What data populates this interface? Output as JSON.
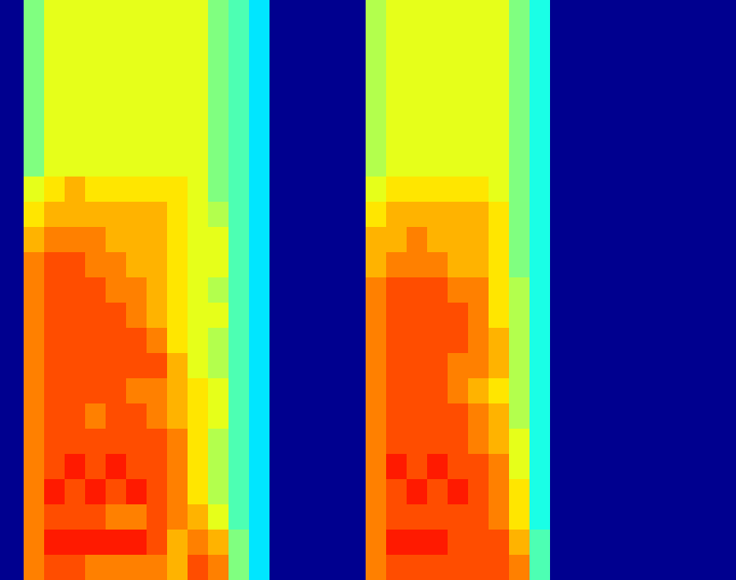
{
  "chart_data": [
    {
      "type": "heatmap",
      "tick_labels": false,
      "zlim": [
        0,
        10
      ],
      "cells": [
        [
          5,
          6,
          6,
          6,
          6,
          6,
          6,
          6,
          6,
          5,
          4.5,
          3.5
        ],
        [
          5,
          6,
          6,
          6,
          6,
          6,
          6,
          6,
          6,
          5,
          4.5,
          3.5
        ],
        [
          5,
          6,
          6,
          6,
          6,
          6,
          6,
          6,
          6,
          5,
          4.5,
          3.5
        ],
        [
          5,
          6,
          6,
          6,
          6,
          6,
          6,
          6,
          6,
          5,
          4.5,
          3.5
        ],
        [
          5,
          6,
          6,
          6,
          6,
          6,
          6,
          6,
          6,
          5,
          4.5,
          3.5
        ],
        [
          5,
          6,
          6,
          6,
          6,
          6,
          6,
          6,
          6,
          5,
          4.5,
          3.5
        ],
        [
          5,
          6,
          6,
          6,
          6,
          6,
          6,
          6,
          6,
          5,
          4.5,
          3.5
        ],
        [
          6,
          6.5,
          7,
          6.5,
          6.5,
          6.5,
          6.5,
          6.5,
          6,
          5,
          4.5,
          3.5
        ],
        [
          6.5,
          7,
          7,
          7,
          7,
          7,
          7,
          6.5,
          6,
          5.5,
          4.5,
          3.5
        ],
        [
          7,
          7.5,
          7.5,
          7.5,
          7,
          7,
          7,
          6.5,
          6,
          6,
          4.5,
          3.5
        ],
        [
          7.5,
          8,
          8,
          7.5,
          7.5,
          7,
          7,
          6.5,
          6,
          6,
          4.5,
          3.5
        ],
        [
          7.5,
          8,
          8,
          8,
          7.5,
          7.5,
          7,
          6.5,
          6,
          5.5,
          4.5,
          3.5
        ],
        [
          7.5,
          8,
          8,
          8,
          8,
          7.5,
          7,
          6.5,
          6,
          6,
          4.5,
          3.5
        ],
        [
          7.5,
          8,
          8,
          8,
          8,
          8,
          7.5,
          6.5,
          6,
          5.5,
          4.5,
          3.5
        ],
        [
          7.5,
          8,
          8,
          8,
          8,
          8,
          8,
          7,
          6,
          5.5,
          4.5,
          3.5
        ],
        [
          7.5,
          8,
          8,
          8,
          8,
          7.5,
          7.5,
          7,
          6.5,
          6,
          4.5,
          3.5
        ],
        [
          7.5,
          8,
          8,
          7.5,
          8,
          8,
          7.5,
          7,
          6.5,
          6,
          4.5,
          3.5
        ],
        [
          7.5,
          8,
          8,
          8,
          8,
          8,
          8,
          7.5,
          6.5,
          5.5,
          4.5,
          3.5
        ],
        [
          7.5,
          8,
          8.5,
          8,
          8.5,
          8,
          8,
          7.5,
          6.5,
          5.5,
          4.5,
          3.5
        ],
        [
          7.5,
          8.5,
          8,
          8.5,
          8,
          8.5,
          8,
          7.5,
          6.5,
          5.5,
          4.5,
          3.5
        ],
        [
          7.5,
          8,
          8,
          8,
          7.5,
          7.5,
          8,
          7.5,
          7,
          6,
          4.5,
          3.5
        ],
        [
          7.5,
          8.5,
          8.5,
          8.5,
          8.5,
          8.5,
          8,
          7,
          7.5,
          7,
          5,
          3.5
        ],
        [
          7.5,
          8,
          8,
          7.5,
          7.5,
          7.5,
          7.5,
          7,
          8,
          7.5,
          5,
          3.5
        ]
      ]
    },
    {
      "type": "heatmap",
      "tick_labels": false,
      "zlim": [
        0,
        10
      ],
      "cells": [
        [
          5.5,
          6,
          6,
          6,
          6,
          6,
          6,
          5,
          4
        ],
        [
          5.5,
          6,
          6,
          6,
          6,
          6,
          6,
          5,
          4
        ],
        [
          5.5,
          6,
          6,
          6,
          6,
          6,
          6,
          5,
          4
        ],
        [
          5.5,
          6,
          6,
          6,
          6,
          6,
          6,
          5,
          4
        ],
        [
          5.5,
          6,
          6,
          6,
          6,
          6,
          6,
          5,
          4
        ],
        [
          5.5,
          6,
          6,
          6,
          6,
          6,
          6,
          5,
          4
        ],
        [
          5.5,
          6,
          6,
          6,
          6,
          6,
          6,
          5,
          4
        ],
        [
          6,
          6.5,
          6.5,
          6.5,
          6.5,
          6.5,
          6,
          5,
          4
        ],
        [
          6.5,
          7,
          7,
          7,
          7,
          7,
          6.5,
          5,
          4
        ],
        [
          7,
          7,
          7.5,
          7,
          7,
          7,
          6.5,
          5,
          4
        ],
        [
          7,
          7.5,
          7.5,
          7.5,
          7,
          7,
          6.5,
          5,
          4
        ],
        [
          7.5,
          8,
          8,
          8,
          7.5,
          7.5,
          6.5,
          5.5,
          4
        ],
        [
          7.5,
          8,
          8,
          8,
          8,
          7.5,
          6.5,
          5.5,
          4
        ],
        [
          7.5,
          8,
          8,
          8,
          8,
          7.5,
          7,
          5.5,
          4
        ],
        [
          7.5,
          8,
          8,
          8,
          7.5,
          7.5,
          7,
          5.5,
          4
        ],
        [
          7.5,
          8,
          8,
          8,
          7.5,
          7,
          6.5,
          5.5,
          4
        ],
        [
          7.5,
          8,
          8,
          8,
          8,
          7.5,
          7,
          5.5,
          4
        ],
        [
          7.5,
          8,
          8,
          8,
          8,
          7.5,
          7,
          6,
          4
        ],
        [
          7.5,
          8.5,
          8,
          8.5,
          8,
          8,
          7.5,
          6,
          4
        ],
        [
          7.5,
          8,
          8.5,
          8,
          8.5,
          8,
          7.5,
          6.5,
          4
        ],
        [
          7.5,
          8,
          8,
          8,
          8,
          8,
          7.5,
          6.5,
          4
        ],
        [
          7.5,
          8.5,
          8.5,
          8.5,
          8,
          8,
          8,
          7,
          4.5
        ],
        [
          7.5,
          8,
          8,
          8,
          8,
          8,
          8,
          7.5,
          4.5
        ]
      ]
    }
  ]
}
